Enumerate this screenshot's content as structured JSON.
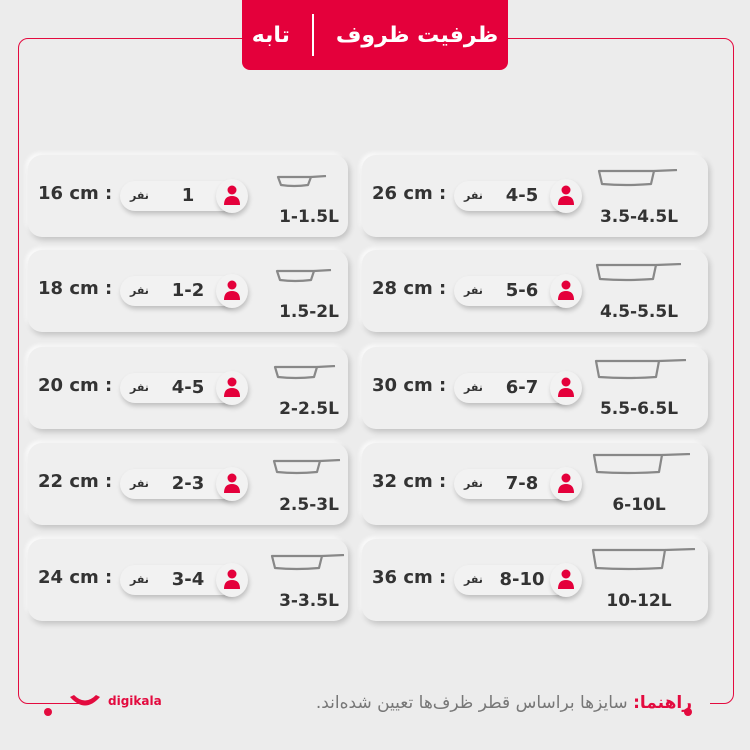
{
  "header": {
    "title": "ظرفیت ظروف",
    "subtitle": "تابه"
  },
  "unit_label": "نفر",
  "accent": "#e4003b",
  "icons": {
    "person": "person-icon",
    "pan": "frying-pan-icon"
  },
  "left": [
    {
      "size": "16 cm :",
      "people": "1",
      "capacity": "1-1.5L"
    },
    {
      "size": "18 cm :",
      "people": "1-2",
      "capacity": "1.5-2L"
    },
    {
      "size": "20 cm :",
      "people": "4-5",
      "capacity": "2-2.5L"
    },
    {
      "size": "22 cm :",
      "people": "2-3",
      "capacity": "2.5-3L"
    },
    {
      "size": "24 cm :",
      "people": "3-4",
      "capacity": "3-3.5L"
    }
  ],
  "right": [
    {
      "size": "26 cm :",
      "people": "4-5",
      "capacity": "3.5-4.5L"
    },
    {
      "size": "28 cm :",
      "people": "5-6",
      "capacity": "4.5-5.5L"
    },
    {
      "size": "30 cm :",
      "people": "6-7",
      "capacity": "5.5-6.5L"
    },
    {
      "size": "32 cm :",
      "people": "7-8",
      "capacity": "6-10L"
    },
    {
      "size": "36 cm :",
      "people": "8-10",
      "capacity": "10-12L"
    }
  ],
  "footer": {
    "label": "راهنما:",
    "text": " سایزها براساس قطر ظرف‌ها تعیین شده‌اند."
  },
  "logo": "digikala"
}
